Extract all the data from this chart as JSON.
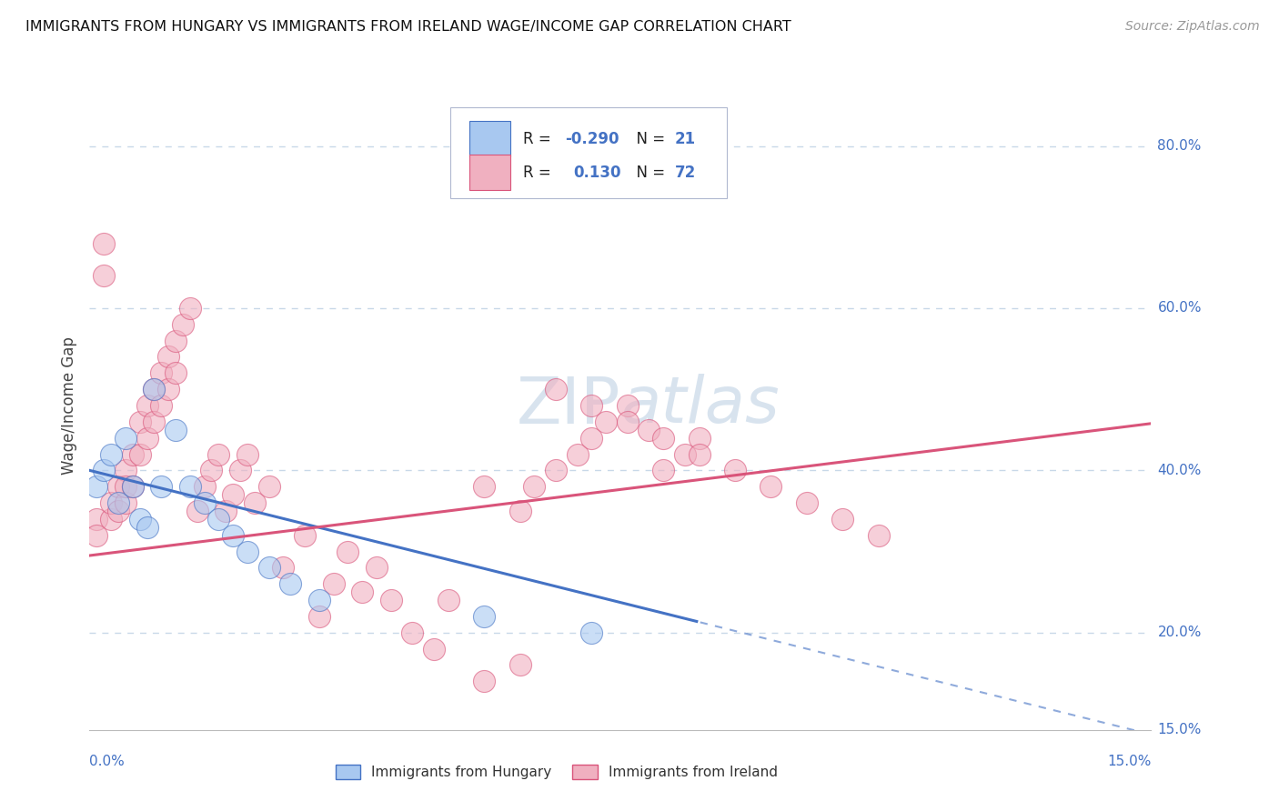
{
  "title": "IMMIGRANTS FROM HUNGARY VS IMMIGRANTS FROM IRELAND WAGE/INCOME GAP CORRELATION CHART",
  "source": "Source: ZipAtlas.com",
  "ylabel": "Wage/Income Gap",
  "legend_hungary": "Immigrants from Hungary",
  "legend_ireland": "Immigrants from Ireland",
  "r_hungary": -0.29,
  "n_hungary": 21,
  "r_ireland": 0.13,
  "n_ireland": 72,
  "color_hungary": "#a8c8f0",
  "color_ireland": "#f0b0c0",
  "trend_hungary": "#4472c4",
  "trend_ireland": "#d9547a",
  "background_color": "#ffffff",
  "grid_color": "#c8d8e8",
  "watermark": "ZIPatlas",
  "xlim_min": 0.0,
  "xlim_max": 0.148,
  "ylim_min": 0.08,
  "ylim_max": 0.88,
  "hungary_x": [
    0.001,
    0.002,
    0.003,
    0.004,
    0.005,
    0.006,
    0.007,
    0.008,
    0.009,
    0.01,
    0.012,
    0.014,
    0.016,
    0.018,
    0.02,
    0.022,
    0.025,
    0.028,
    0.032,
    0.055,
    0.07
  ],
  "hungary_y": [
    0.38,
    0.4,
    0.42,
    0.36,
    0.44,
    0.38,
    0.34,
    0.33,
    0.5,
    0.38,
    0.45,
    0.38,
    0.36,
    0.34,
    0.32,
    0.3,
    0.28,
    0.26,
    0.24,
    0.22,
    0.2
  ],
  "ireland_x": [
    0.001,
    0.001,
    0.002,
    0.002,
    0.003,
    0.003,
    0.004,
    0.004,
    0.005,
    0.005,
    0.005,
    0.006,
    0.006,
    0.007,
    0.007,
    0.008,
    0.008,
    0.009,
    0.009,
    0.01,
    0.01,
    0.011,
    0.011,
    0.012,
    0.012,
    0.013,
    0.014,
    0.015,
    0.016,
    0.017,
    0.018,
    0.019,
    0.02,
    0.021,
    0.022,
    0.023,
    0.025,
    0.027,
    0.03,
    0.032,
    0.034,
    0.036,
    0.038,
    0.04,
    0.042,
    0.045,
    0.048,
    0.05,
    0.055,
    0.06,
    0.062,
    0.065,
    0.068,
    0.07,
    0.072,
    0.075,
    0.078,
    0.08,
    0.083,
    0.085,
    0.065,
    0.07,
    0.075,
    0.08,
    0.085,
    0.09,
    0.095,
    0.1,
    0.105,
    0.11,
    0.055,
    0.06
  ],
  "ireland_y": [
    0.34,
    0.32,
    0.68,
    0.64,
    0.34,
    0.36,
    0.38,
    0.35,
    0.4,
    0.36,
    0.38,
    0.42,
    0.38,
    0.46,
    0.42,
    0.48,
    0.44,
    0.5,
    0.46,
    0.52,
    0.48,
    0.54,
    0.5,
    0.56,
    0.52,
    0.58,
    0.6,
    0.35,
    0.38,
    0.4,
    0.42,
    0.35,
    0.37,
    0.4,
    0.42,
    0.36,
    0.38,
    0.28,
    0.32,
    0.22,
    0.26,
    0.3,
    0.25,
    0.28,
    0.24,
    0.2,
    0.18,
    0.24,
    0.14,
    0.16,
    0.38,
    0.4,
    0.42,
    0.44,
    0.46,
    0.48,
    0.45,
    0.4,
    0.42,
    0.44,
    0.5,
    0.48,
    0.46,
    0.44,
    0.42,
    0.4,
    0.38,
    0.36,
    0.34,
    0.32,
    0.38,
    0.35
  ]
}
